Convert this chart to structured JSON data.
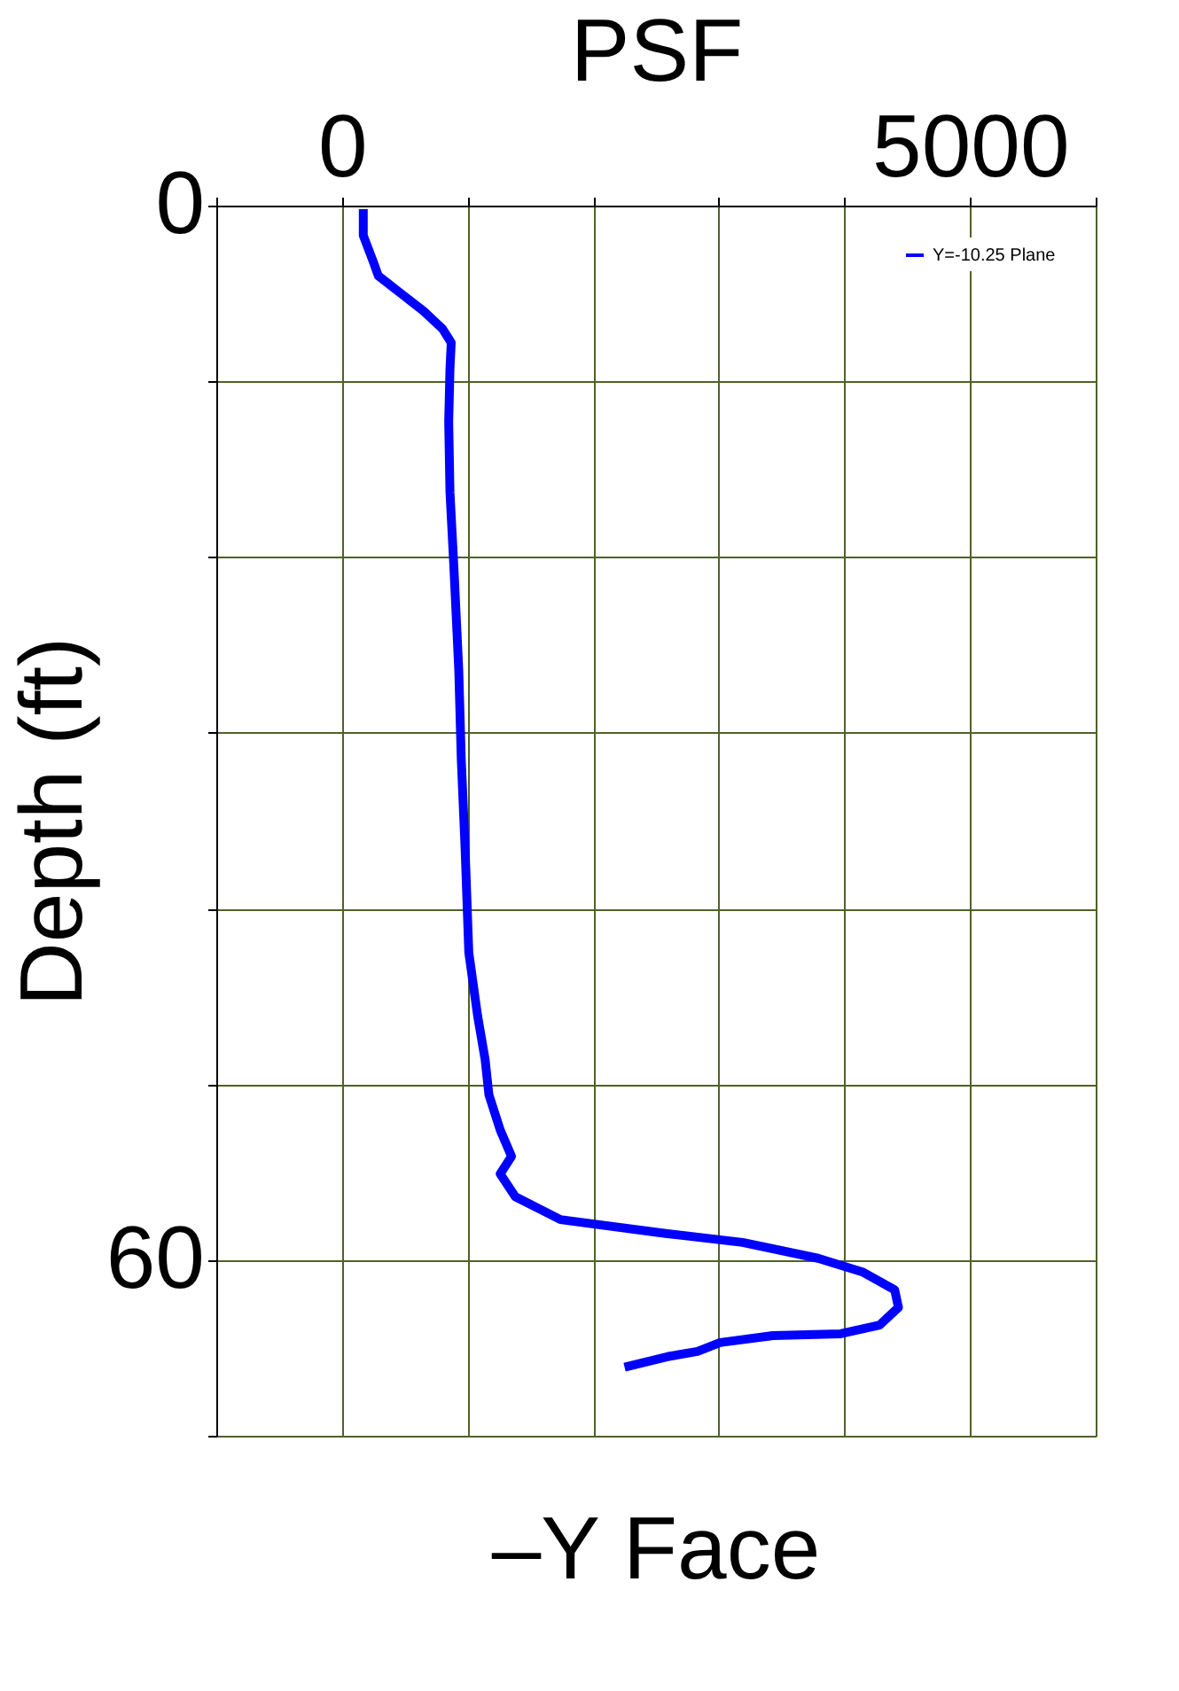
{
  "chart_data": {
    "type": "line",
    "title": "–Y Face",
    "xlabel": "PSF",
    "ylabel": "Depth (ft)",
    "xlim": [
      -1000,
      6000
    ],
    "xticks": [
      {
        "value": -1000,
        "label": null
      },
      0,
      {
        "value": 1000,
        "label": null
      },
      {
        "value": 2000,
        "label": null
      },
      {
        "value": 3000,
        "label": null
      },
      {
        "value": 4000,
        "label": null
      },
      5000,
      {
        "value": 6000,
        "label": null
      }
    ],
    "ylim": [
      70,
      0
    ],
    "yticks": [
      0,
      {
        "value": 10,
        "label": null
      },
      {
        "value": 20,
        "label": null
      },
      {
        "value": 30,
        "label": null
      },
      {
        "value": 40,
        "label": null
      },
      {
        "value": 50,
        "label": null
      },
      60,
      {
        "value": 70,
        "label": null
      }
    ],
    "grid": true,
    "legend": "top right",
    "marker": "none",
    "line_style": "solid",
    "series": [
      {
        "name": "Y=-10.25 Plane",
        "color": "#0000ff",
        "x": [
          170,
          170,
          250,
          290,
          470,
          650,
          800,
          870,
          860,
          850,
          860,
          890,
          930,
          950,
          980,
          1010,
          1080,
          1140,
          1170,
          1260,
          1350,
          1260,
          1380,
          1740,
          2590,
          3190,
          3790,
          4150,
          4400,
          4430,
          4280,
          3970,
          3430,
          3010,
          2830,
          2590,
          2250
        ],
        "values": [
          0.2,
          1.7,
          3.2,
          4.0,
          5.0,
          6.0,
          7.0,
          7.8,
          9.3,
          12.3,
          16.3,
          20.4,
          26.4,
          31.5,
          36.5,
          42.5,
          46.1,
          48.6,
          50.6,
          52.6,
          54.1,
          55.1,
          56.4,
          57.7,
          58.5,
          59.0,
          59.9,
          60.7,
          61.7,
          62.7,
          63.7,
          64.2,
          64.3,
          64.7,
          65.2,
          65.5,
          66.1
        ]
      }
    ]
  }
}
